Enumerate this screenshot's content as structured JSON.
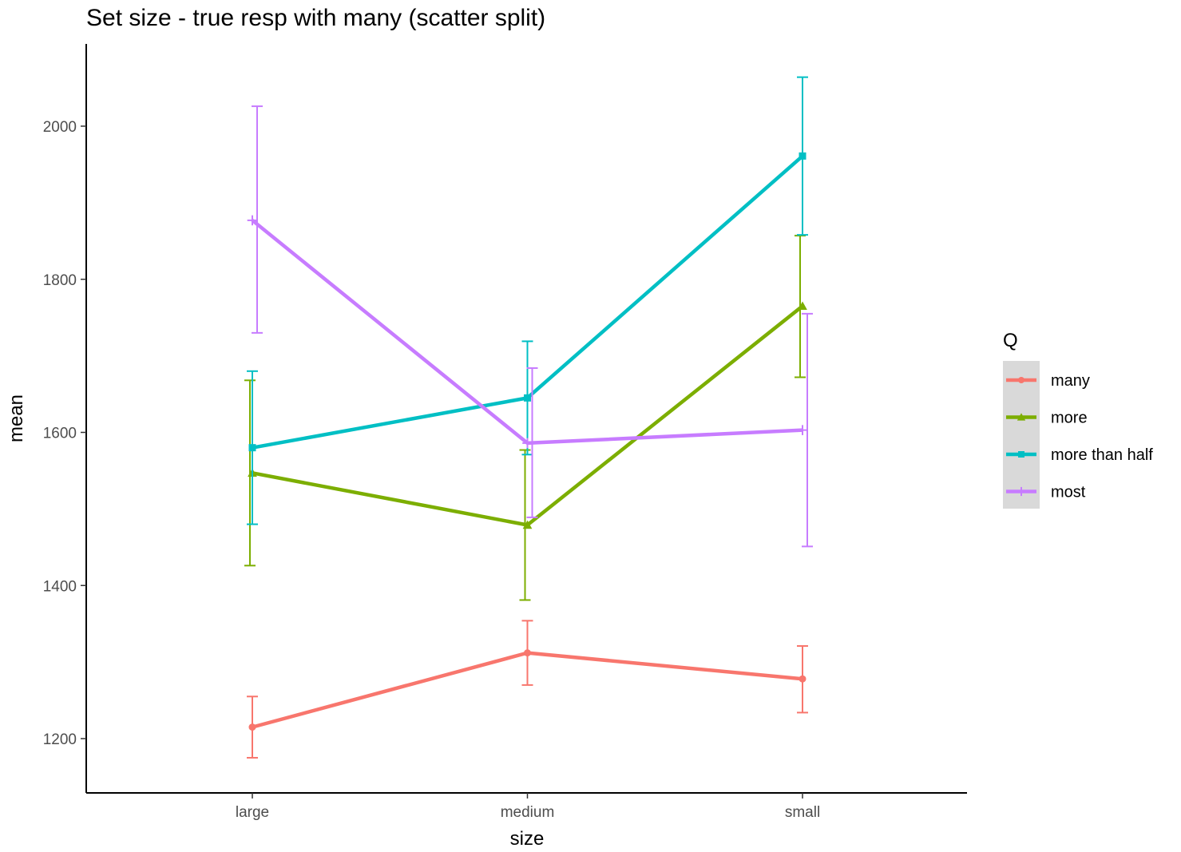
{
  "chart_data": {
    "type": "line",
    "title": "Set size - true resp with many (scatter split)",
    "xlabel": "size",
    "ylabel": "mean",
    "categories": [
      "large",
      "medium",
      "small"
    ],
    "ylim": [
      1130,
      2100
    ],
    "yticks": [
      1200,
      1400,
      1600,
      1800,
      2000
    ],
    "grid": false,
    "error_bars": true,
    "legend": {
      "title": "Q",
      "placement": "right"
    },
    "series": [
      {
        "name": "many",
        "color": "#F8766D",
        "marker": "circle",
        "values": [
          1215,
          1312,
          1278
        ],
        "lower": [
          1175,
          1270,
          1234
        ],
        "upper": [
          1255,
          1354,
          1321
        ]
      },
      {
        "name": "more",
        "color": "#7CAE00",
        "marker": "triangle",
        "values": [
          1547,
          1479,
          1765
        ],
        "lower": [
          1426,
          1381,
          1672
        ],
        "upper": [
          1668,
          1577,
          1857
        ]
      },
      {
        "name": "more than half",
        "color": "#00BFC4",
        "marker": "square",
        "values": [
          1580,
          1645,
          1961
        ],
        "lower": [
          1480,
          1571,
          1858
        ],
        "upper": [
          1680,
          1719,
          2064
        ]
      },
      {
        "name": "most",
        "color": "#C77CFF",
        "marker": "plus",
        "values": [
          1877,
          1586,
          1603
        ],
        "lower": [
          1730,
          1489,
          1451
        ],
        "upper": [
          2026,
          1684,
          1755
        ]
      }
    ]
  }
}
